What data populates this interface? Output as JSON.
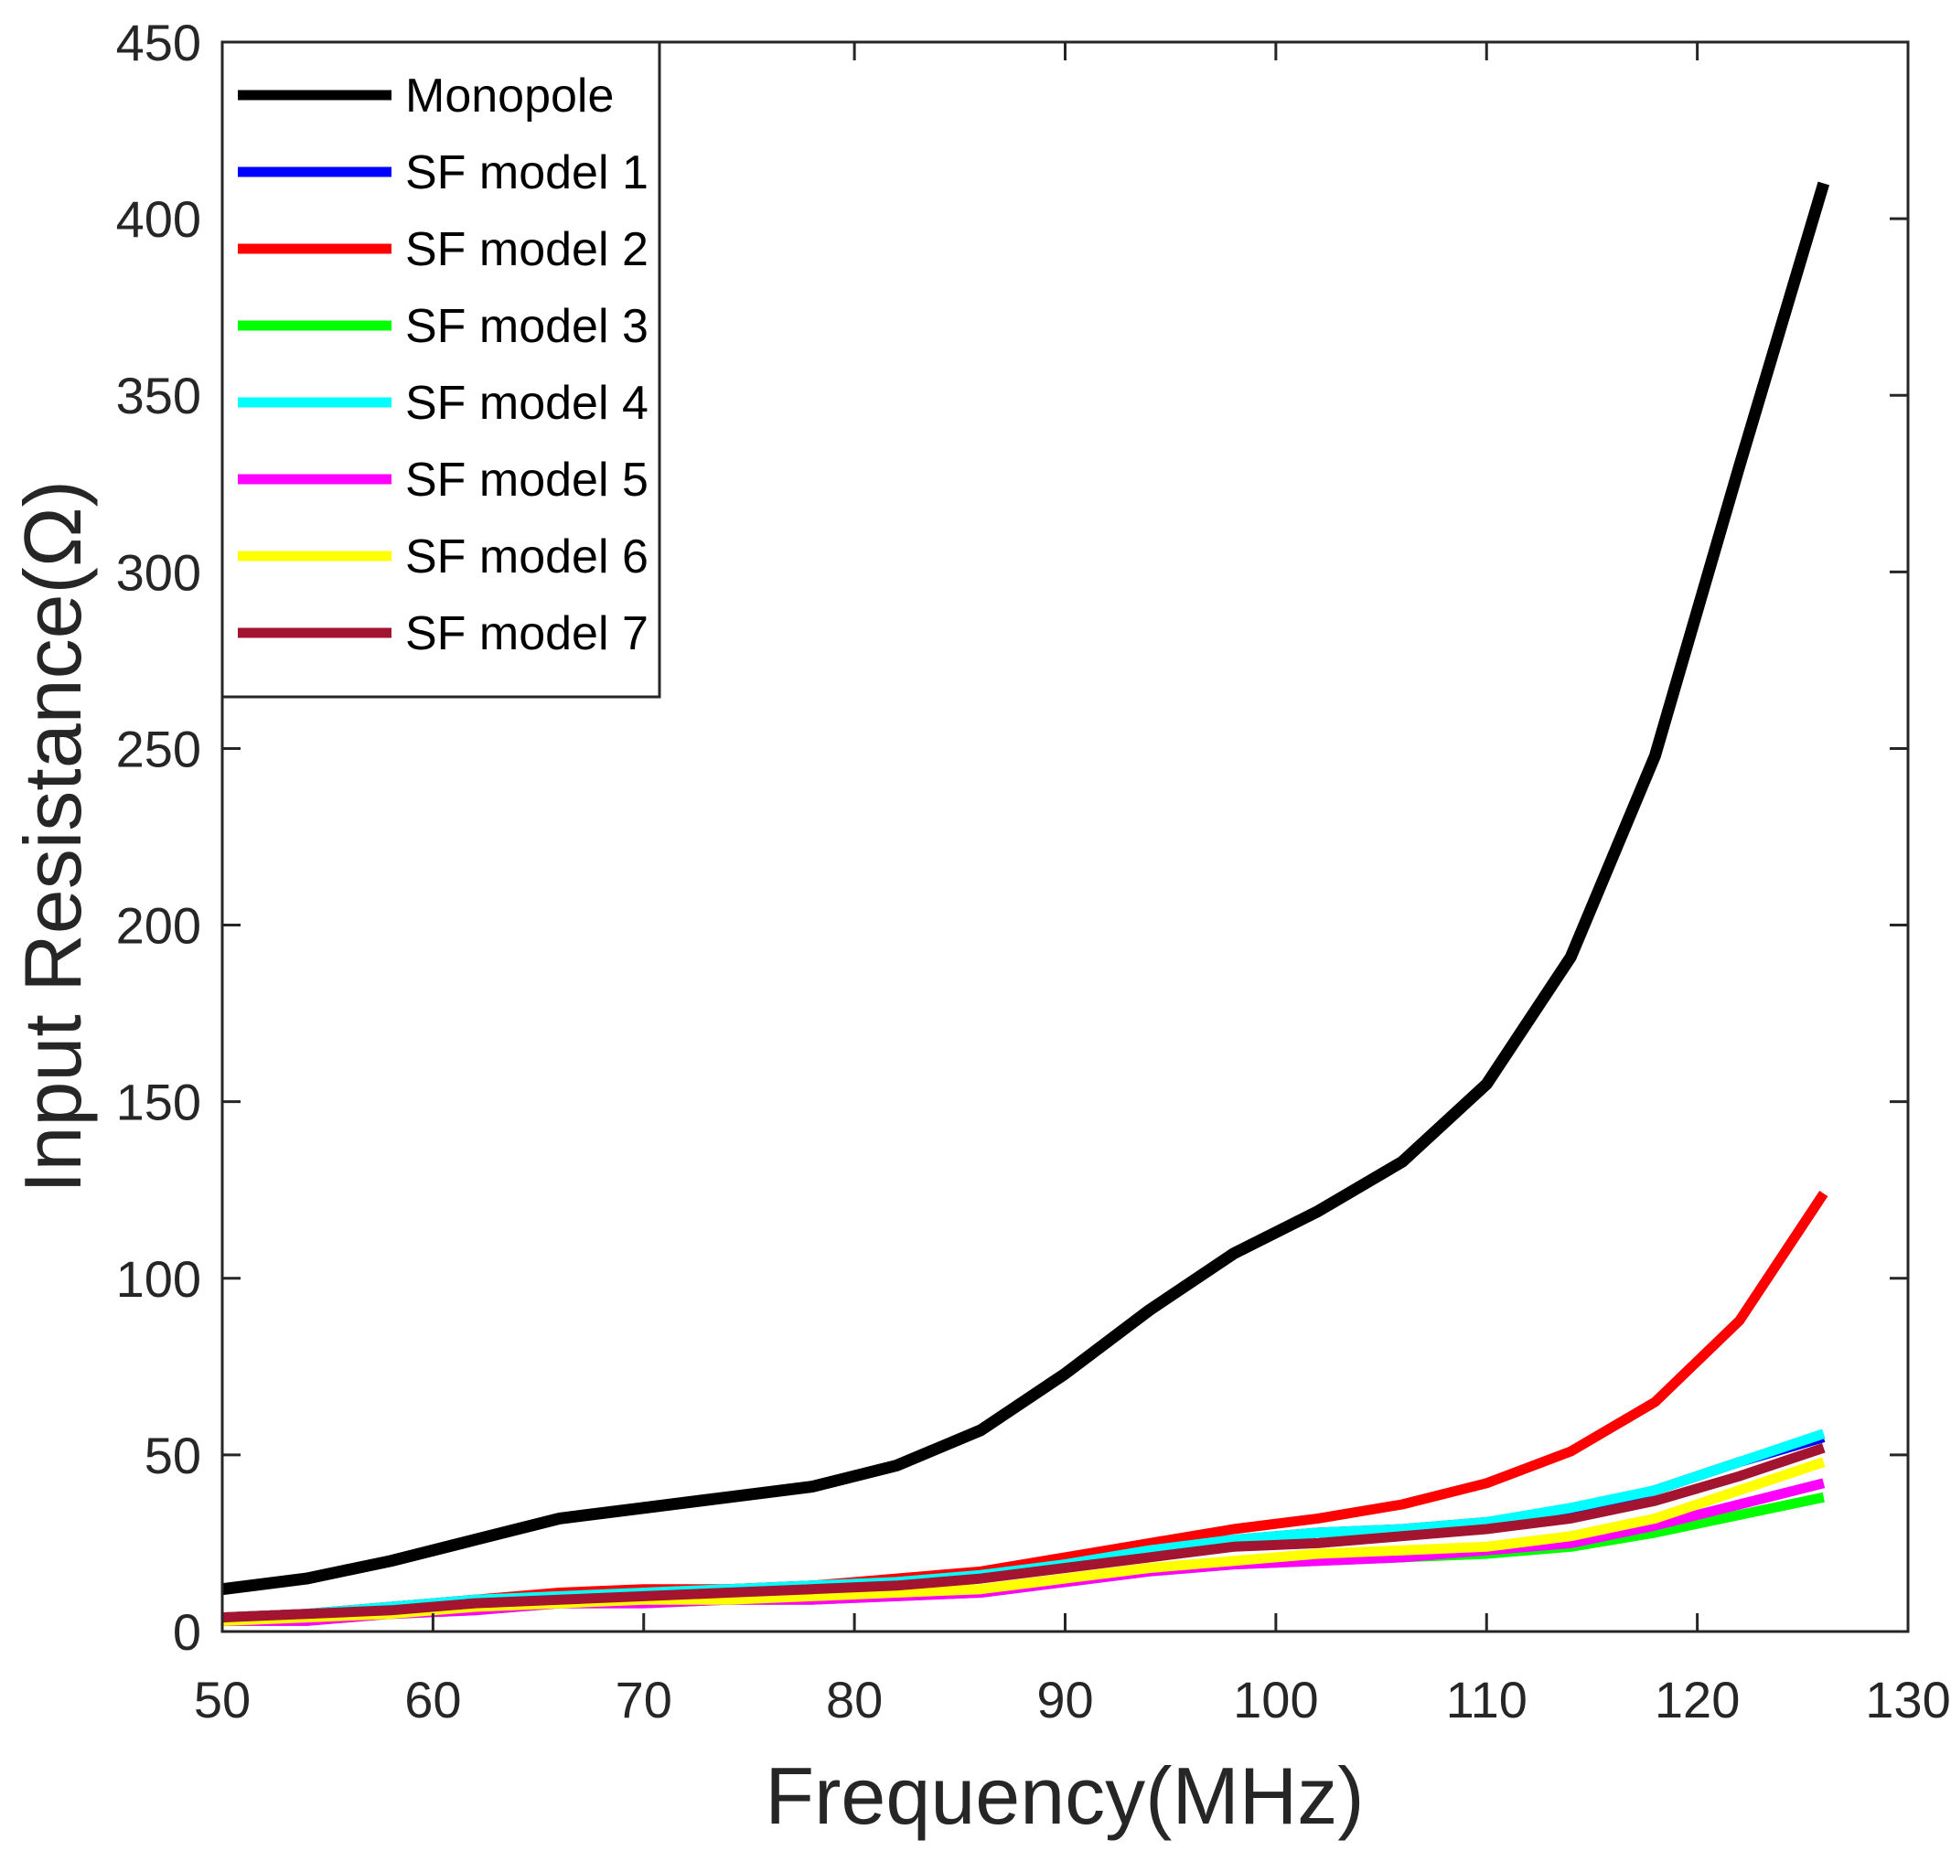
{
  "chart_data": {
    "type": "line",
    "xlabel": "Frequency(MHz)",
    "ylabel": "Input Resistance(Ω)",
    "xlim": [
      50,
      130
    ],
    "ylim": [
      0,
      450
    ],
    "xticks": [
      50,
      60,
      70,
      80,
      90,
      100,
      110,
      120,
      130
    ],
    "yticks": [
      0,
      50,
      100,
      150,
      200,
      250,
      300,
      350,
      400,
      450
    ],
    "legend_position": "top-left",
    "x": [
      50,
      54,
      58,
      62,
      66,
      70,
      74,
      78,
      82,
      86,
      90,
      94,
      98,
      102,
      106,
      110,
      114,
      118,
      122,
      126
    ],
    "series": [
      {
        "name": "Monopole",
        "color": "#000000",
        "values": [
          12,
          15,
          20,
          26,
          32,
          35,
          38,
          41,
          47,
          57,
          73,
          91,
          107,
          119,
          133,
          155,
          191,
          248,
          330,
          410
        ]
      },
      {
        "name": "SF model 1",
        "color": "#0000ff",
        "values": [
          4,
          5,
          7,
          9,
          10,
          11,
          12,
          13,
          14,
          16,
          19,
          23,
          26,
          28,
          29,
          31,
          34,
          40,
          48,
          55
        ]
      },
      {
        "name": "SF model 2",
        "color": "#ff0000",
        "values": [
          4,
          5,
          7,
          9,
          11,
          12,
          12,
          13,
          15,
          17,
          21,
          25,
          29,
          32,
          36,
          42,
          51,
          65,
          88,
          124
        ]
      },
      {
        "name": "SF model 3",
        "color": "#00ff00",
        "values": [
          3,
          3,
          5,
          6,
          8,
          8,
          9,
          9,
          10,
          11,
          14,
          17,
          19,
          20,
          21,
          22,
          24,
          28,
          33,
          38
        ]
      },
      {
        "name": "SF model 4",
        "color": "#00ffff",
        "values": [
          4,
          5,
          7,
          9,
          10,
          11,
          12,
          13,
          14,
          16,
          19,
          23,
          26,
          28,
          29,
          31,
          35,
          40,
          48,
          56
        ]
      },
      {
        "name": "SF model 5",
        "color": "#ff00ff",
        "values": [
          3,
          3,
          5,
          6,
          8,
          8,
          9,
          9,
          10,
          11,
          14,
          17,
          19,
          20,
          21,
          23,
          25,
          30,
          36,
          42
        ]
      },
      {
        "name": "SF model 6",
        "color": "#ffff00",
        "values": [
          3,
          4,
          5,
          7,
          8,
          9,
          9,
          10,
          11,
          12,
          15,
          18,
          20,
          22,
          23,
          24,
          27,
          32,
          40,
          48
        ]
      },
      {
        "name": "SF model 7",
        "color": "#a2142f",
        "values": [
          4,
          5,
          6,
          8,
          9,
          10,
          11,
          12,
          13,
          15,
          18,
          21,
          24,
          25,
          27,
          29,
          32,
          37,
          44,
          52
        ]
      }
    ]
  }
}
